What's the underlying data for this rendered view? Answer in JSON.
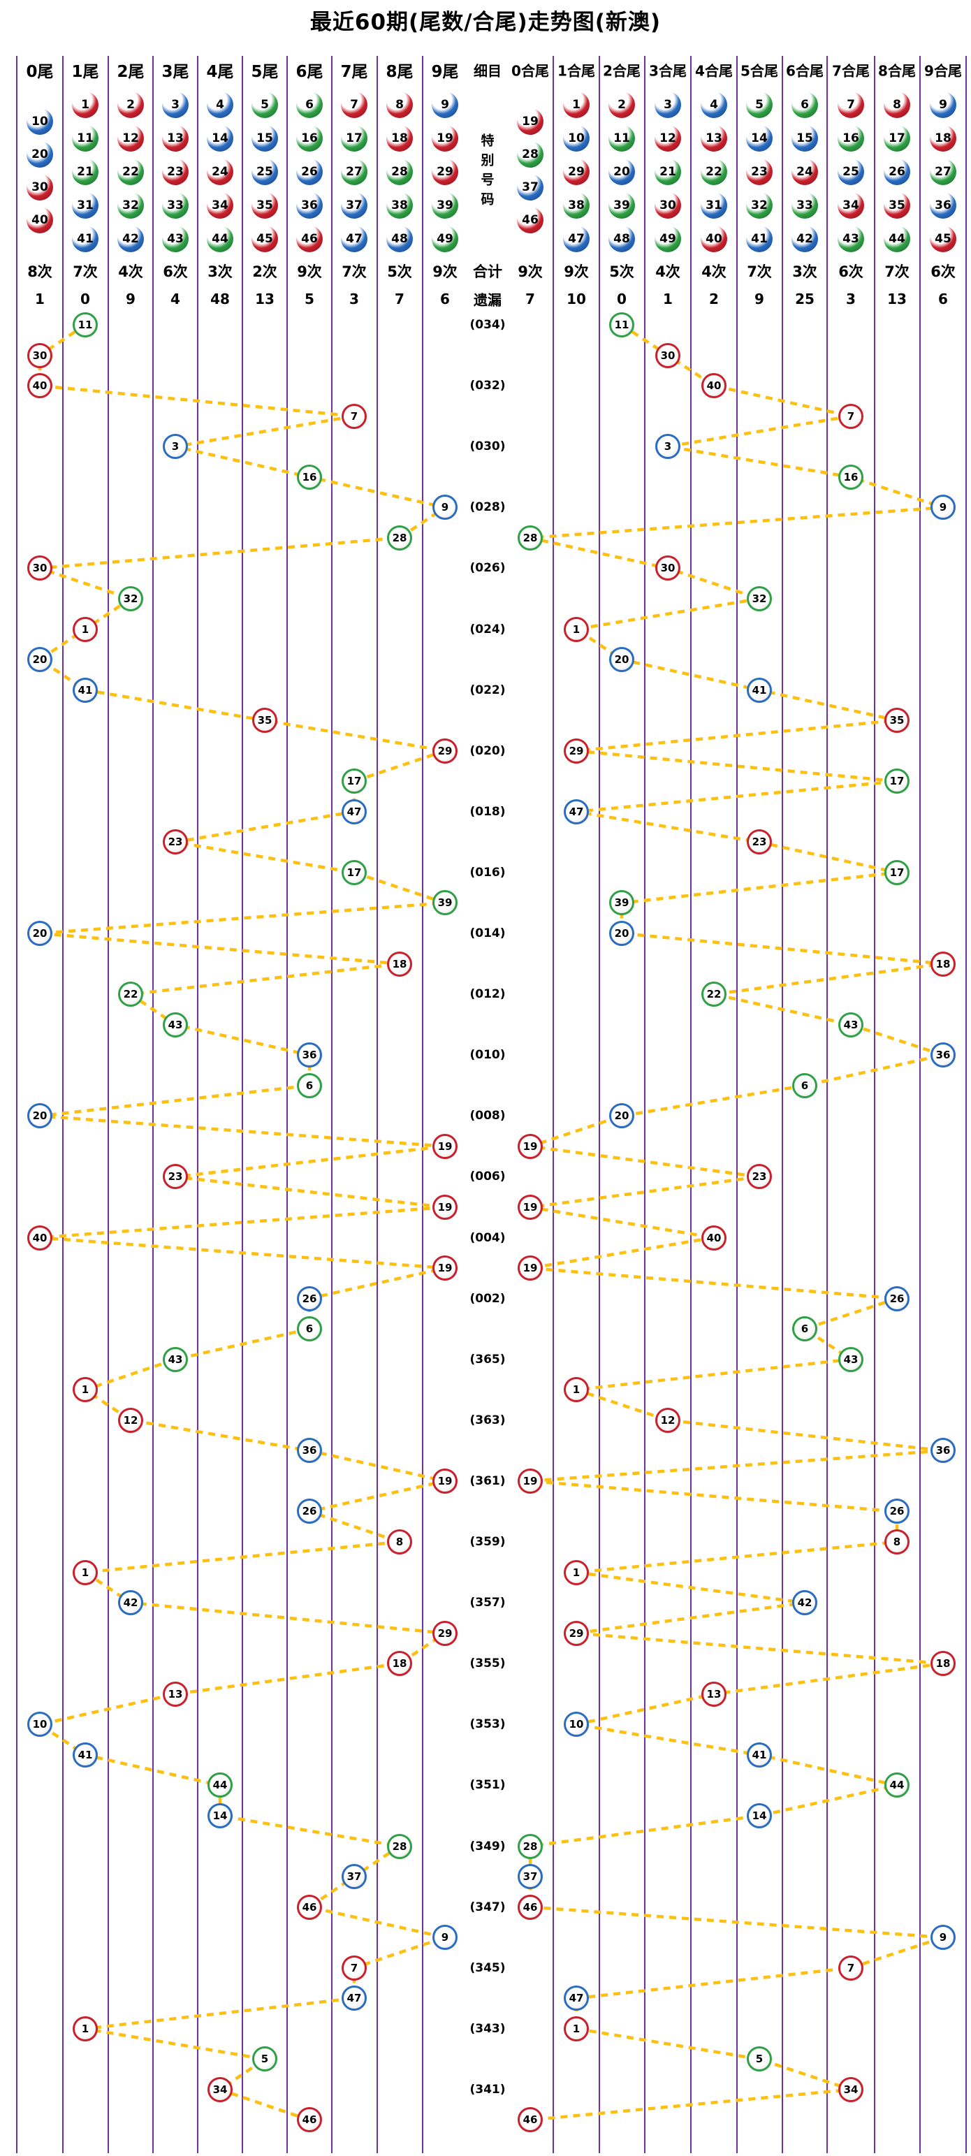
{
  "title": "最近60期(尾数/合尾)走势图(新澳)",
  "middle": {
    "header": "细目",
    "special_label_chars": [
      "特",
      "别",
      "号",
      "码"
    ],
    "total_label": "合计",
    "miss_label": "遗漏"
  },
  "left_columns": [
    {
      "label": "0尾",
      "balls": [
        10,
        20,
        30,
        40
      ],
      "count": "8次",
      "miss": "1"
    },
    {
      "label": "1尾",
      "balls": [
        1,
        11,
        21,
        31,
        41
      ],
      "count": "7次",
      "miss": "0"
    },
    {
      "label": "2尾",
      "balls": [
        2,
        12,
        22,
        32,
        42
      ],
      "count": "4次",
      "miss": "9"
    },
    {
      "label": "3尾",
      "balls": [
        3,
        13,
        23,
        33,
        43
      ],
      "count": "6次",
      "miss": "4"
    },
    {
      "label": "4尾",
      "balls": [
        4,
        14,
        24,
        34,
        44
      ],
      "count": "3次",
      "miss": "48"
    },
    {
      "label": "5尾",
      "balls": [
        5,
        15,
        25,
        35,
        45
      ],
      "count": "2次",
      "miss": "13"
    },
    {
      "label": "6尾",
      "balls": [
        6,
        16,
        26,
        36,
        46
      ],
      "count": "9次",
      "miss": "5"
    },
    {
      "label": "7尾",
      "balls": [
        7,
        17,
        27,
        37,
        47
      ],
      "count": "7次",
      "miss": "3"
    },
    {
      "label": "8尾",
      "balls": [
        8,
        18,
        28,
        38,
        48
      ],
      "count": "5次",
      "miss": "7"
    },
    {
      "label": "9尾",
      "balls": [
        9,
        19,
        29,
        39,
        49
      ],
      "count": "9次",
      "miss": "6"
    }
  ],
  "right_columns": [
    {
      "label": "0合尾",
      "balls": [
        19,
        28,
        37,
        46
      ],
      "count": "9次",
      "miss": "7"
    },
    {
      "label": "1合尾",
      "balls": [
        1,
        10,
        29,
        38,
        47
      ],
      "count": "9次",
      "miss": "10"
    },
    {
      "label": "2合尾",
      "balls": [
        2,
        11,
        20,
        39,
        48
      ],
      "count": "5次",
      "miss": "0"
    },
    {
      "label": "3合尾",
      "balls": [
        3,
        12,
        21,
        30,
        49
      ],
      "count": "4次",
      "miss": "1"
    },
    {
      "label": "4合尾",
      "balls": [
        4,
        13,
        22,
        31,
        40
      ],
      "count": "4次",
      "miss": "2"
    },
    {
      "label": "5合尾",
      "balls": [
        5,
        14,
        23,
        32,
        41
      ],
      "count": "7次",
      "miss": "9"
    },
    {
      "label": "6合尾",
      "balls": [
        6,
        15,
        24,
        33,
        42
      ],
      "count": "3次",
      "miss": "25"
    },
    {
      "label": "7合尾",
      "balls": [
        7,
        16,
        25,
        34,
        43
      ],
      "count": "6次",
      "miss": "3"
    },
    {
      "label": "8合尾",
      "balls": [
        8,
        17,
        26,
        35,
        44
      ],
      "count": "7次",
      "miss": "13"
    },
    {
      "label": "9合尾",
      "balls": [
        9,
        18,
        27,
        36,
        45
      ],
      "count": "6次",
      "miss": "6"
    }
  ],
  "ball_colors": {
    "red": [
      1,
      2,
      7,
      8,
      12,
      13,
      18,
      19,
      23,
      24,
      29,
      30,
      34,
      35,
      40,
      45,
      46
    ],
    "blue": [
      3,
      4,
      9,
      10,
      14,
      15,
      20,
      25,
      26,
      31,
      36,
      37,
      41,
      42,
      47,
      48
    ],
    "green": [
      5,
      6,
      11,
      16,
      17,
      21,
      22,
      27,
      28,
      32,
      33,
      38,
      39,
      43,
      44,
      49
    ]
  },
  "theme": {
    "red": "#c9202c",
    "red_dark": "#7e141d",
    "blue": "#2a6cc0",
    "blue_dark": "#123e7d",
    "green": "#2fa045",
    "green_dark": "#175f27",
    "grid_line": "#7030a0",
    "trend_line": "#fdc010",
    "text": "#000000"
  },
  "chart_data": {
    "type": "line",
    "title": "最近60期(尾数/合尾)走势图(新澳)",
    "x_axis_left_categories": [
      "0尾",
      "1尾",
      "2尾",
      "3尾",
      "4尾",
      "5尾",
      "6尾",
      "7尾",
      "8尾",
      "9尾"
    ],
    "x_axis_right_categories": [
      "0合尾",
      "1合尾",
      "2合尾",
      "3合尾",
      "4合尾",
      "5合尾",
      "6合尾",
      "7合尾",
      "8合尾",
      "9合尾"
    ],
    "legend_position": "none",
    "grid": "vertical-only",
    "note": "60 periods newest-first; each row = [period_label, special_number, tail_column, sum_tail_column]",
    "rows": [
      [
        "(034)",
        11,
        1,
        2
      ],
      [
        "",
        30,
        0,
        3
      ],
      [
        "(032)",
        40,
        0,
        4
      ],
      [
        "",
        7,
        7,
        7
      ],
      [
        "(030)",
        3,
        3,
        3
      ],
      [
        "",
        16,
        6,
        7
      ],
      [
        "(028)",
        9,
        9,
        9
      ],
      [
        "",
        28,
        8,
        0
      ],
      [
        "(026)",
        30,
        0,
        3
      ],
      [
        "",
        32,
        2,
        5
      ],
      [
        "(024)",
        1,
        1,
        1
      ],
      [
        "",
        20,
        0,
        2
      ],
      [
        "(022)",
        41,
        1,
        5
      ],
      [
        "",
        35,
        5,
        8
      ],
      [
        "(020)",
        29,
        9,
        1
      ],
      [
        "",
        17,
        7,
        8
      ],
      [
        "(018)",
        47,
        7,
        1
      ],
      [
        "",
        23,
        3,
        5
      ],
      [
        "(016)",
        17,
        7,
        8
      ],
      [
        "",
        39,
        9,
        2
      ],
      [
        "(014)",
        20,
        0,
        2
      ],
      [
        "",
        18,
        8,
        9
      ],
      [
        "(012)",
        22,
        2,
        4
      ],
      [
        "",
        43,
        3,
        7
      ],
      [
        "(010)",
        36,
        6,
        9
      ],
      [
        "",
        6,
        6,
        6
      ],
      [
        "(008)",
        20,
        0,
        2
      ],
      [
        "",
        19,
        9,
        0
      ],
      [
        "(006)",
        23,
        3,
        5
      ],
      [
        "",
        19,
        9,
        0
      ],
      [
        "(004)",
        40,
        0,
        4
      ],
      [
        "",
        19,
        9,
        0
      ],
      [
        "(002)",
        26,
        6,
        8
      ],
      [
        "",
        6,
        6,
        6
      ],
      [
        "(365)",
        43,
        3,
        7
      ],
      [
        "",
        1,
        1,
        1
      ],
      [
        "(363)",
        12,
        2,
        3
      ],
      [
        "",
        36,
        6,
        9
      ],
      [
        "(361)",
        19,
        9,
        0
      ],
      [
        "",
        26,
        6,
        8
      ],
      [
        "(359)",
        8,
        8,
        8
      ],
      [
        "",
        1,
        1,
        1
      ],
      [
        "(357)",
        42,
        2,
        6
      ],
      [
        "",
        29,
        9,
        1
      ],
      [
        "(355)",
        18,
        8,
        9
      ],
      [
        "",
        13,
        3,
        4
      ],
      [
        "(353)",
        10,
        0,
        1
      ],
      [
        "",
        41,
        1,
        5
      ],
      [
        "(351)",
        44,
        4,
        8
      ],
      [
        "",
        14,
        4,
        5
      ],
      [
        "(349)",
        28,
        8,
        0
      ],
      [
        "",
        37,
        7,
        0
      ],
      [
        "(347)",
        46,
        6,
        0
      ],
      [
        "",
        9,
        9,
        9
      ],
      [
        "(345)",
        7,
        7,
        7
      ],
      [
        "",
        47,
        7,
        1
      ],
      [
        "(343)",
        1,
        1,
        1
      ],
      [
        "",
        5,
        5,
        5
      ],
      [
        "(341)",
        34,
        4,
        7
      ],
      [
        "",
        46,
        6,
        0
      ]
    ],
    "counts_left": [
      8,
      7,
      4,
      6,
      3,
      2,
      9,
      7,
      5,
      9
    ],
    "miss_left": [
      1,
      0,
      9,
      4,
      48,
      13,
      5,
      3,
      7,
      6
    ],
    "counts_right": [
      9,
      9,
      5,
      4,
      4,
      7,
      3,
      6,
      7,
      6
    ],
    "miss_right": [
      7,
      10,
      0,
      1,
      2,
      9,
      25,
      3,
      13,
      6
    ]
  }
}
